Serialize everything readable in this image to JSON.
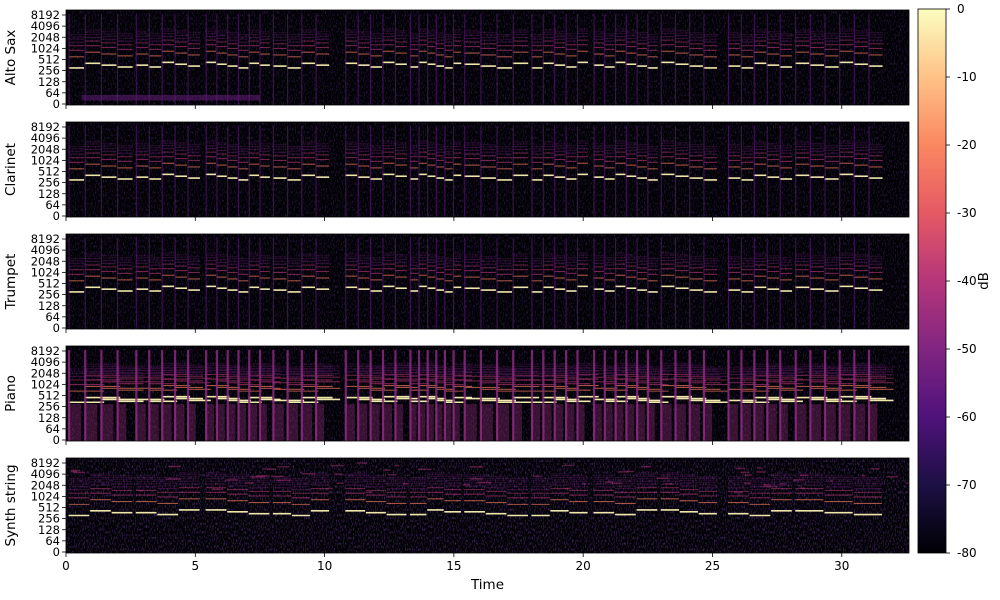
{
  "chart_data": {
    "type": "heatmap",
    "kind": "spectrogram",
    "panels": [
      {
        "ylabel": "Alto Sax",
        "pattern": "wind",
        "fundamental_hz": 360
      },
      {
        "ylabel": "Clarinet",
        "pattern": "clarinet",
        "fundamental_hz": 360
      },
      {
        "ylabel": "Trumpet",
        "pattern": "wind",
        "fundamental_hz": 360
      },
      {
        "ylabel": "Piano",
        "pattern": "piano",
        "fundamental_hz": 400
      },
      {
        "ylabel": "Synth string",
        "pattern": "synth",
        "fundamental_hz": 370
      }
    ],
    "xlabel": "Time",
    "xlim": [
      0,
      32.6
    ],
    "xticks": [
      0,
      5,
      10,
      15,
      20,
      25,
      30
    ],
    "yscale": "log2",
    "yticks": [
      0,
      64,
      128,
      256,
      512,
      1024,
      2048,
      4096,
      8192
    ],
    "note_segments": [
      [
        0.1,
        2.6
      ],
      [
        2.7,
        5.2
      ],
      [
        5.4,
        7.9
      ],
      [
        8.0,
        10.2
      ],
      [
        10.8,
        13.2
      ],
      [
        13.3,
        15.3
      ],
      [
        15.4,
        17.9
      ],
      [
        18.0,
        20.2
      ],
      [
        20.4,
        22.9
      ],
      [
        23.0,
        25.2
      ],
      [
        25.6,
        28.1
      ],
      [
        28.2,
        31.6
      ]
    ],
    "colorbar": {
      "label": "dB",
      "ticks": [
        0,
        -10,
        -20,
        -30,
        -40,
        -50,
        -60,
        -70,
        -80
      ],
      "range": [
        -80,
        0
      ],
      "colormap": "magma"
    }
  }
}
